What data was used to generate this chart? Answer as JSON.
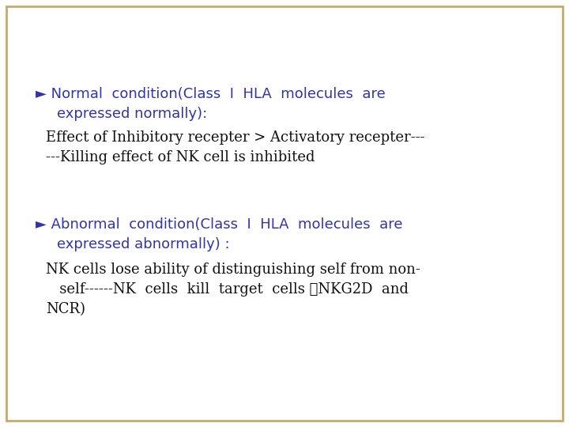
{
  "background_color": "#ffffff",
  "border_color": "#c8a96e",
  "border_linewidth": 2.0,
  "text_color_blue": "#3333aa",
  "text_color_black": "#111111",
  "sec1_bullet": "► Normal  condition(Class  Ⅰ  HLA  molecules  are",
  "sec1_indent": "   expressed normally):",
  "sec1_body1": "Effect of Inhibitory recepter > Activatory recepter---",
  "sec1_body2": "---Killing effect of NK cell is inhibited",
  "sec2_bullet": "► Abnormal  condition(Class  Ⅰ  HLA  molecules  are",
  "sec2_indent": "   expressed abnormally) :",
  "sec2_body1": "NK cells lose ability of distinguishing self from non-",
  "sec2_body2": "   self------NK  cells  kill  target  cells （NKG2D  and",
  "sec2_body3": "NCR)",
  "font_size_blue": 13,
  "font_size_black": 13,
  "fig_width": 7.2,
  "fig_height": 5.4,
  "dpi": 100
}
